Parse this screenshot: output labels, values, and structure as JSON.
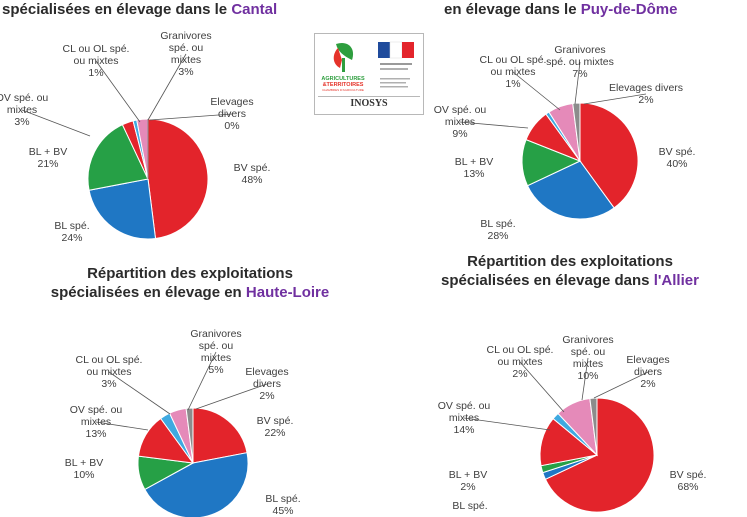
{
  "logo": {
    "brand_line1": "AGRICULTURES",
    "brand_line2": "&TERRITOIRES",
    "brand_line3": "CHAMBRES D'AGRICULTURE",
    "name": "INOSYS"
  },
  "chart_data": [
    {
      "type": "pie",
      "title_prefix": "spécialisées en élevage dans le ",
      "title_region": "Cantal",
      "title_line0": "",
      "slices": [
        {
          "label": "BV spé.",
          "value": 48,
          "color": "#e3242b"
        },
        {
          "label": "BL spé.",
          "value": 24,
          "color": "#1f77c4"
        },
        {
          "label": "BL + BV",
          "value": 21,
          "color": "#26a046"
        },
        {
          "label": "OV spé. ou mixtes",
          "value": 3,
          "color": "#e3242b"
        },
        {
          "label": "CL ou OL spé. ou mixtes",
          "value": 1,
          "color": "#3fa9e0"
        },
        {
          "label": "Granivores spé. ou mixtes",
          "value": 3,
          "color": "#e58ab9"
        },
        {
          "label": "Elevages divers",
          "value": 0,
          "color": "#8c8c8c"
        }
      ],
      "labels": [
        {
          "l1": "BV spé.",
          "l2": "48%"
        },
        {
          "l1": "BL spé.",
          "l2": "24%"
        },
        {
          "l1": "BL + BV",
          "l2": "21%"
        },
        {
          "l1": "OV spé. ou",
          "l2": "mixtes",
          "l3": "3%"
        },
        {
          "l1": "CL ou OL spé.",
          "l2": "ou mixtes",
          "l3": "1%"
        },
        {
          "l1": "Granivores",
          "l2": "spé. ou",
          "l3": "mixtes",
          "l4": "3%"
        },
        {
          "l1": "Elevages",
          "l2": "divers",
          "l3": "0%"
        }
      ]
    },
    {
      "type": "pie",
      "title_prefix": "en élevage dans le ",
      "title_region": "Puy-de-Dôme",
      "title_line0": "",
      "slices": [
        {
          "label": "BV spé.",
          "value": 40,
          "color": "#e3242b"
        },
        {
          "label": "BL spé.",
          "value": 28,
          "color": "#1f77c4"
        },
        {
          "label": "BL + BV",
          "value": 13,
          "color": "#26a046"
        },
        {
          "label": "OV spé. ou mixtes",
          "value": 9,
          "color": "#e3242b"
        },
        {
          "label": "CL ou OL spé. ou mixtes",
          "value": 1,
          "color": "#3fa9e0"
        },
        {
          "label": "Granivores spé. ou mixtes",
          "value": 7,
          "color": "#e58ab9"
        },
        {
          "label": "Elevages divers",
          "value": 2,
          "color": "#8c8c8c"
        }
      ],
      "labels": [
        {
          "l1": "BV spé.",
          "l2": "40%"
        },
        {
          "l1": "BL spé.",
          "l2": "28%"
        },
        {
          "l1": "BL + BV",
          "l2": "13%"
        },
        {
          "l1": "OV spé. ou",
          "l2": "mixtes",
          "l3": "9%"
        },
        {
          "l1": "CL ou OL spé.",
          "l2": "ou mixtes",
          "l3": "1%"
        },
        {
          "l1": "Granivores",
          "l2": "spé. ou mixtes",
          "l3": "7%"
        },
        {
          "l1": "Elevages divers",
          "l2": "2%"
        }
      ]
    },
    {
      "type": "pie",
      "title_line0": "Répartition des exploitations",
      "title_prefix": "spécialisées en élevage en ",
      "title_region": "Haute-Loire",
      "slices": [
        {
          "label": "BV spé.",
          "value": 22,
          "color": "#e3242b"
        },
        {
          "label": "BL spé.",
          "value": 45,
          "color": "#1f77c4"
        },
        {
          "label": "BL + BV",
          "value": 10,
          "color": "#26a046"
        },
        {
          "label": "OV spé. ou mixtes",
          "value": 13,
          "color": "#e3242b"
        },
        {
          "label": "CL ou OL spé. ou mixtes",
          "value": 3,
          "color": "#3fa9e0"
        },
        {
          "label": "Granivores spé. ou mixtes",
          "value": 5,
          "color": "#e58ab9"
        },
        {
          "label": "Elevages divers",
          "value": 2,
          "color": "#8c8c8c"
        }
      ],
      "labels": [
        {
          "l1": "BV spé.",
          "l2": "22%"
        },
        {
          "l1": "BL spé.",
          "l2": "45%"
        },
        {
          "l1": "BL + BV",
          "l2": "10%"
        },
        {
          "l1": "OV spé. ou",
          "l2": "mixtes",
          "l3": "13%"
        },
        {
          "l1": "CL ou OL spé.",
          "l2": "ou mixtes",
          "l3": "3%"
        },
        {
          "l1": "Granivores",
          "l2": "spé. ou",
          "l3": "mixtes",
          "l4": "5%"
        },
        {
          "l1": "Elevages",
          "l2": "divers",
          "l3": "2%"
        }
      ]
    },
    {
      "type": "pie",
      "title_line0": "Répartition des exploitations",
      "title_prefix": "spécialisées en élevage dans ",
      "title_region": "l'Allier",
      "slices": [
        {
          "label": "BV spé.",
          "value": 68,
          "color": "#e3242b"
        },
        {
          "label": "BL spé.",
          "value": 2,
          "color": "#1f77c4"
        },
        {
          "label": "BL + BV",
          "value": 2,
          "color": "#26a046"
        },
        {
          "label": "OV spé. ou mixtes",
          "value": 14,
          "color": "#e3242b"
        },
        {
          "label": "CL ou OL spé. ou mixtes",
          "value": 2,
          "color": "#3fa9e0"
        },
        {
          "label": "Granivores spé. ou mixtes",
          "value": 10,
          "color": "#e58ab9"
        },
        {
          "label": "Elevages divers",
          "value": 2,
          "color": "#8c8c8c"
        }
      ],
      "labels": [
        {
          "l1": "BV spé.",
          "l2": "68%"
        },
        {
          "l1": "BL spé.",
          "l2": ""
        },
        {
          "l1": "BL + BV",
          "l2": "2%"
        },
        {
          "l1": "OV spé. ou",
          "l2": "mixtes",
          "l3": "14%"
        },
        {
          "l1": "CL ou OL spé.",
          "l2": "ou mixtes",
          "l3": "2%"
        },
        {
          "l1": "Granivores",
          "l2": "spé. ou",
          "l3": "mixtes",
          "l4": "10%"
        },
        {
          "l1": "Elevages",
          "l2": "divers",
          "l3": "2%"
        }
      ]
    }
  ]
}
